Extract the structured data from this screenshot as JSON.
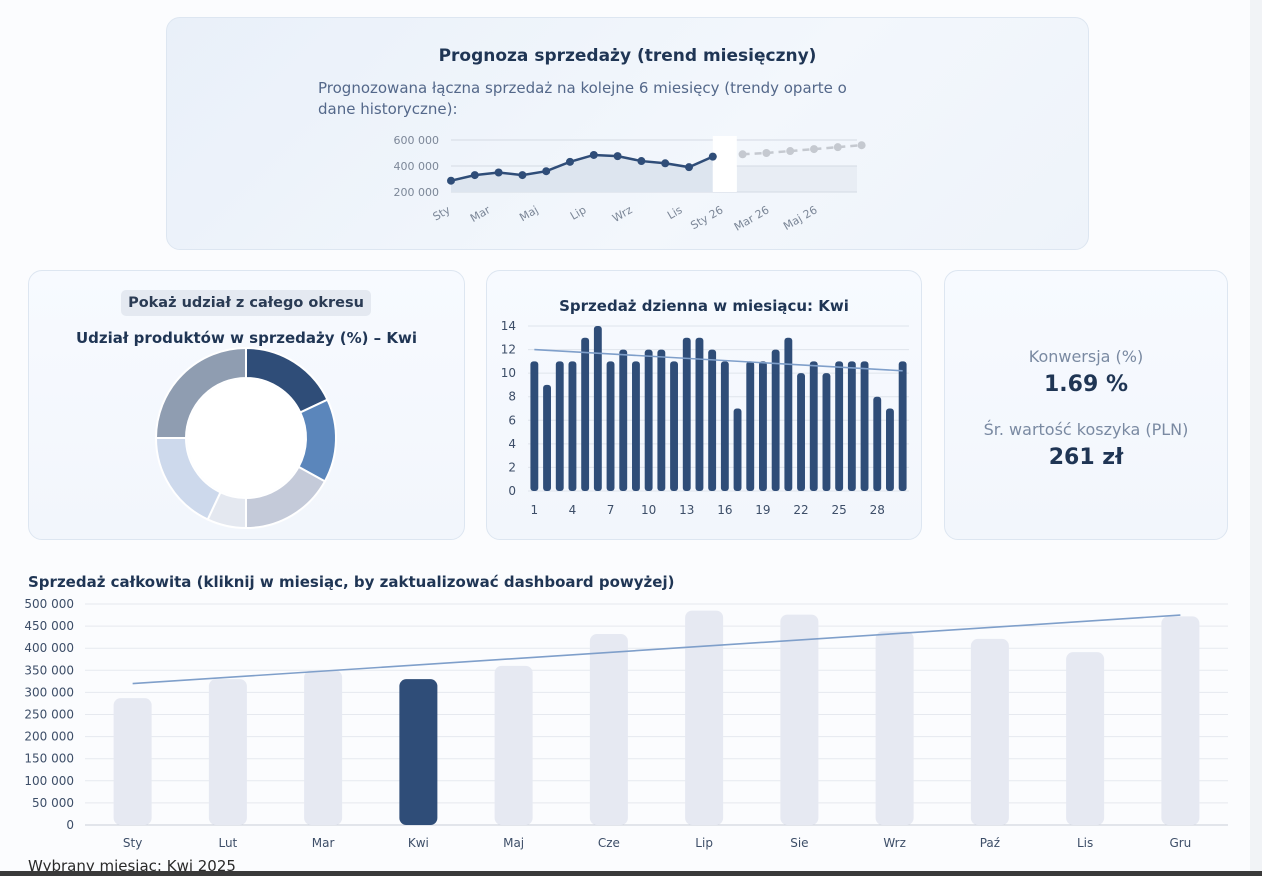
{
  "forecast": {
    "title": "Prognoza sprzedaży (trend miesięczny)",
    "description": "Prognozowana łączna sprzedaż na kolejne 6 miesięcy (trendy oparte o dane historyczne):",
    "chart_data": {
      "type": "line",
      "y_ticks": [
        "600 000",
        "400 000",
        "200 000"
      ],
      "x_ticks": [
        "Sty",
        "Mar",
        "Maj",
        "Lip",
        "Wrz",
        "Lis",
        "Sty 26",
        "Mar 26",
        "Maj 26"
      ],
      "ylim": [
        200000,
        600000
      ],
      "series": [
        {
          "role": "historical",
          "color": "#2f4d78",
          "x": [
            "Sty",
            "Lut",
            "Mar",
            "Kwi",
            "Maj",
            "Cze",
            "Lip",
            "Sie",
            "Wrz",
            "Paź",
            "Lis",
            "Gru"
          ],
          "values": [
            287000,
            330000,
            350000,
            330000,
            360000,
            432000,
            485000,
            476000,
            438000,
            421000,
            391000,
            472000
          ]
        },
        {
          "role": "forecast",
          "color": "#c5c9d0",
          "x": [
            "Sty 26",
            "Lut 26",
            "Mar 26",
            "Kwi 26",
            "Maj 26",
            "Cze 26"
          ],
          "values": [
            490000,
            500000,
            515000,
            530000,
            545000,
            560000
          ]
        }
      ]
    }
  },
  "share": {
    "toggle_label": "Pokaż udział z całego okresu",
    "title": "Udział produktów w sprzedaży (%) – Kwi",
    "chart_data": {
      "type": "pie",
      "values": [
        18,
        15,
        17,
        7,
        18,
        25
      ],
      "colors": [
        "#2f4d78",
        "#5b86bb",
        "#c4cad9",
        "#e4e8f0",
        "#cdd9ec",
        "#8f9db1"
      ]
    }
  },
  "daily": {
    "title": "Sprzedaż dzienna w miesiącu: Kwi",
    "chart_data": {
      "type": "bar",
      "x": [
        1,
        2,
        3,
        4,
        5,
        6,
        7,
        8,
        9,
        10,
        11,
        12,
        13,
        14,
        15,
        16,
        17,
        18,
        19,
        20,
        21,
        22,
        23,
        24,
        25,
        26,
        27,
        28,
        29,
        30
      ],
      "values": [
        11,
        9,
        11,
        11,
        13,
        14,
        11,
        12,
        11,
        12,
        12,
        11,
        13,
        13,
        12,
        11,
        7,
        11,
        11,
        12,
        13,
        10,
        11,
        10,
        11,
        11,
        11,
        8,
        7,
        11
      ],
      "x_ticks": [
        "1",
        "4",
        "7",
        "10",
        "13",
        "16",
        "19",
        "22",
        "25",
        "28"
      ],
      "y_ticks": [
        "0",
        "2",
        "4",
        "6",
        "8",
        "10",
        "12",
        "14"
      ],
      "ylim": [
        0,
        14
      ],
      "trend": [
        12,
        10.2
      ],
      "bar_color": "#2f4d78",
      "trend_color": "#7f9fca"
    }
  },
  "kpi": {
    "conversion_label": "Konwersja (%)",
    "conversion_value": "1.69 %",
    "basket_label": "Śr. wartość koszyka (PLN)",
    "basket_value": "261 zł"
  },
  "total": {
    "title": "Sprzedaż całkowita (kliknij w miesiąc, by zaktualizować dashboard powyżej)",
    "chart_data": {
      "type": "bar",
      "categories": [
        "Sty",
        "Lut",
        "Mar",
        "Kwi",
        "Maj",
        "Cze",
        "Lip",
        "Sie",
        "Wrz",
        "Paź",
        "Lis",
        "Gru"
      ],
      "values": [
        287000,
        330000,
        350000,
        330000,
        360000,
        432000,
        485000,
        476000,
        438000,
        421000,
        391000,
        472000
      ],
      "y_ticks": [
        "500 000",
        "450 000",
        "400 000",
        "350 000",
        "300 000",
        "250 000",
        "200 000",
        "150 000",
        "100 000",
        "50 000",
        "0"
      ],
      "ylim": [
        0,
        500000
      ],
      "selected": "Kwi",
      "trend": [
        320000,
        475000
      ],
      "bar_color": "#e6e9f2",
      "selected_color": "#2f4d78",
      "trend_color": "#7f9fca"
    }
  },
  "selected_month_text": "Wybrany miesiąc: Kwi 2025"
}
